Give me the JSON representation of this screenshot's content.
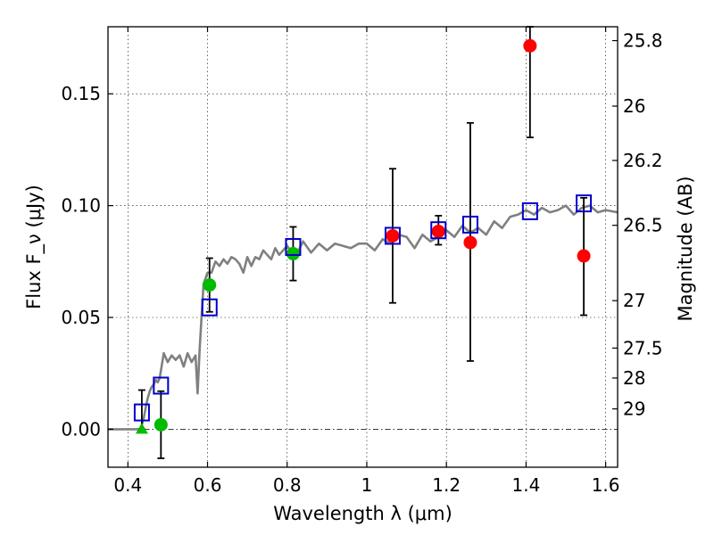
{
  "chart_data": {
    "type": "scatter",
    "title": "",
    "xlabel": "Wavelength λ (μm)",
    "ylabel": "Flux F_ν (μJy)",
    "ylabel_right": "Magnitude (AB)",
    "xlim": [
      0.35,
      1.63
    ],
    "ylim": [
      -0.017,
      0.18
    ],
    "grid": true,
    "x_ticks": [
      0.4,
      0.6,
      0.8,
      1.0,
      1.2,
      1.4,
      1.6
    ],
    "x_tick_labels": [
      "0.4",
      "0.6",
      "0.8",
      "1",
      "1.2",
      "1.4",
      "1.6"
    ],
    "y_ticks": [
      0.0,
      0.05,
      0.1,
      0.15
    ],
    "y_tick_labels": [
      "0.00",
      "0.05",
      "0.10",
      "0.15"
    ],
    "right_ticks": [
      {
        "label": "25.8",
        "flux": 0.1738
      },
      {
        "label": "26",
        "flux": 0.1445
      },
      {
        "label": "26.2",
        "flux": 0.1202
      },
      {
        "label": "26.5",
        "flux": 0.0912
      },
      {
        "label": "27",
        "flux": 0.0575
      },
      {
        "label": "27.5",
        "flux": 0.0363
      },
      {
        "label": "28",
        "flux": 0.0229
      },
      {
        "label": "29",
        "flux": 0.0091
      }
    ],
    "series": [
      {
        "name": "model-sed",
        "kind": "line",
        "color": "#808080",
        "x": [
          0.35,
          0.43,
          0.435,
          0.44,
          0.445,
          0.45,
          0.455,
          0.46,
          0.465,
          0.47,
          0.475,
          0.48,
          0.49,
          0.5,
          0.51,
          0.52,
          0.53,
          0.54,
          0.55,
          0.56,
          0.57,
          0.575,
          0.58,
          0.585,
          0.59,
          0.6,
          0.61,
          0.62,
          0.63,
          0.64,
          0.65,
          0.66,
          0.67,
          0.68,
          0.69,
          0.7,
          0.71,
          0.72,
          0.73,
          0.74,
          0.75,
          0.76,
          0.77,
          0.78,
          0.8,
          0.82,
          0.84,
          0.86,
          0.88,
          0.9,
          0.92,
          0.94,
          0.96,
          0.98,
          1.0,
          1.02,
          1.04,
          1.06,
          1.08,
          1.1,
          1.12,
          1.14,
          1.16,
          1.18,
          1.2,
          1.22,
          1.24,
          1.26,
          1.28,
          1.3,
          1.32,
          1.34,
          1.36,
          1.38,
          1.4,
          1.42,
          1.44,
          1.46,
          1.48,
          1.5,
          1.52,
          1.54,
          1.56,
          1.58,
          1.6,
          1.63
        ],
        "y": [
          0.0,
          0.0,
          0.002,
          0.005,
          0.01,
          0.014,
          0.017,
          0.019,
          0.02,
          0.022,
          0.021,
          0.023,
          0.034,
          0.03,
          0.033,
          0.031,
          0.033,
          0.028,
          0.034,
          0.03,
          0.033,
          0.016,
          0.035,
          0.05,
          0.065,
          0.07,
          0.07,
          0.075,
          0.073,
          0.076,
          0.074,
          0.077,
          0.076,
          0.074,
          0.07,
          0.077,
          0.073,
          0.077,
          0.076,
          0.08,
          0.078,
          0.076,
          0.081,
          0.078,
          0.082,
          0.077,
          0.084,
          0.079,
          0.083,
          0.08,
          0.083,
          0.082,
          0.081,
          0.083,
          0.083,
          0.08,
          0.085,
          0.083,
          0.087,
          0.086,
          0.081,
          0.087,
          0.084,
          0.086,
          0.089,
          0.086,
          0.091,
          0.088,
          0.09,
          0.087,
          0.093,
          0.09,
          0.095,
          0.096,
          0.098,
          0.096,
          0.099,
          0.097,
          0.098,
          0.1,
          0.096,
          0.099,
          0.1,
          0.097,
          0.098,
          0.097
        ]
      },
      {
        "name": "model-photometry",
        "kind": "open-square",
        "color": "#0000cc",
        "x": [
          0.435,
          0.483,
          0.605,
          0.815,
          1.065,
          1.18,
          1.26,
          1.41,
          1.545
        ],
        "y": [
          0.0075,
          0.0195,
          0.0545,
          0.0815,
          0.0865,
          0.089,
          0.0915,
          0.0975,
          0.101
        ]
      },
      {
        "name": "detections",
        "kind": "filled-circle",
        "color": "#ff0000",
        "points": [
          {
            "x": 1.065,
            "y": 0.0865,
            "yerr_lo": 0.0565,
            "yerr_hi": 0.1165
          },
          {
            "x": 1.18,
            "y": 0.0885,
            "yerr_lo": 0.0825,
            "yerr_hi": 0.0955
          },
          {
            "x": 1.26,
            "y": 0.0835,
            "yerr_lo": 0.0305,
            "yerr_hi": 0.137
          },
          {
            "x": 1.41,
            "y": 0.1715,
            "yerr_lo": 0.1305,
            "yerr_hi": 0.18
          },
          {
            "x": 1.545,
            "y": 0.0775,
            "yerr_lo": 0.051,
            "yerr_hi": 0.1035
          }
        ]
      },
      {
        "name": "optical-detections",
        "kind": "filled-circle",
        "color": "#00bb00",
        "points": [
          {
            "x": 0.483,
            "y": 0.002,
            "yerr_lo": -0.013,
            "yerr_hi": 0.017
          },
          {
            "x": 0.605,
            "y": 0.0645,
            "yerr_lo": 0.0525,
            "yerr_hi": 0.0765
          },
          {
            "x": 0.815,
            "y": 0.0785,
            "yerr_lo": 0.0665,
            "yerr_hi": 0.0905
          }
        ]
      },
      {
        "name": "upper-limit",
        "kind": "triangle",
        "color": "#00bb00",
        "points": [
          {
            "x": 0.435,
            "y": 0.0,
            "yerr_lo": 0.0,
            "yerr_hi": 0.0175
          }
        ]
      }
    ],
    "zero_line": {
      "y": 0.0,
      "style": "dash-dot"
    }
  }
}
